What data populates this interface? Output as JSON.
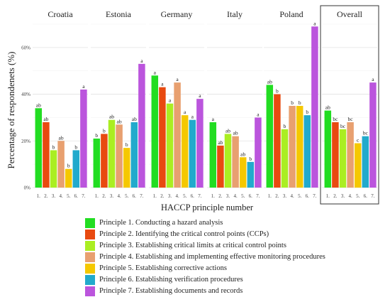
{
  "chart_data": {
    "type": "bar",
    "ylabel": "Percentage of respondenets (%)",
    "xlabel": "HACCP principle number",
    "y_ticks": [
      "0%",
      "20%",
      "40%",
      "60%"
    ],
    "ylim": [
      0,
      70
    ],
    "categories": [
      "1.",
      "2.",
      "3.",
      "4.",
      "5.",
      "6.",
      "7."
    ],
    "colors": [
      "#22dd22",
      "#e84a10",
      "#aaee22",
      "#e8a070",
      "#f5c800",
      "#22aacc",
      "#bb55dd"
    ],
    "panels": [
      {
        "name": "Croatia",
        "values": [
          34,
          28,
          16,
          20,
          8,
          16,
          42
        ],
        "letters": [
          "ab",
          "ab",
          "b",
          "ab",
          "b",
          "b",
          "a"
        ]
      },
      {
        "name": "Estonia",
        "values": [
          21,
          23,
          29,
          27,
          17,
          28,
          53
        ],
        "letters": [
          "b",
          "b",
          "ab",
          "ab",
          "b",
          "ab",
          "a"
        ]
      },
      {
        "name": "Germany",
        "values": [
          48,
          43,
          36,
          45,
          31,
          29,
          38
        ],
        "letters": [
          "a",
          "a",
          "a",
          "a",
          "a",
          "a",
          "a"
        ]
      },
      {
        "name": "Italy",
        "values": [
          28,
          18,
          23,
          22,
          13,
          11,
          30
        ],
        "letters": [
          "a",
          "ab",
          "ab",
          "ab",
          "ab",
          "b",
          "a"
        ]
      },
      {
        "name": "Poland",
        "values": [
          44,
          40,
          25,
          35,
          35,
          31,
          69
        ],
        "letters": [
          "ab",
          "b",
          "b",
          "b",
          "b",
          "b",
          "a"
        ]
      },
      {
        "name": "Overall",
        "values": [
          33,
          28,
          25,
          28,
          19,
          22,
          45
        ],
        "letters": [
          "ab",
          "bc",
          "bc",
          "bc",
          "c",
          "bc",
          "a"
        ]
      }
    ],
    "highlighted_panel": "Overall",
    "legend": [
      "Principle 1. Conducting a hazard analysis",
      "Principle 2. Identifying the critical control points (CCPs)",
      "Principle 3. Establishing critical limits at critical control points",
      "Principle 4. Establishing and implementing effective monitoring procedures",
      "Principle 5. Establishing corrective actions",
      "Principle 6. Establishing verification procedures",
      "Principle 7. Establishing documents and records"
    ],
    "grid": true,
    "legend_position": "bottom"
  }
}
